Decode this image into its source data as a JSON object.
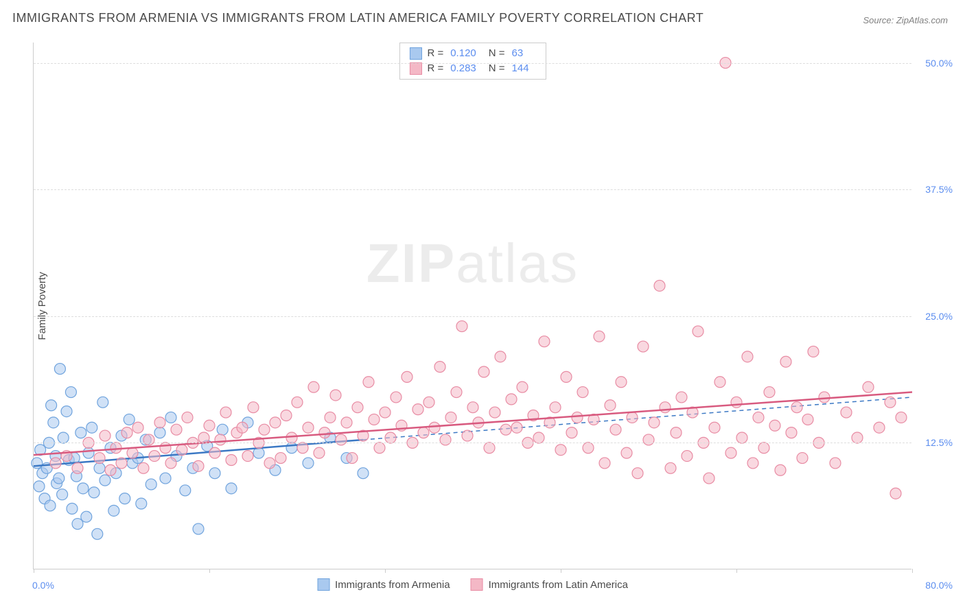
{
  "title": "IMMIGRANTS FROM ARMENIA VS IMMIGRANTS FROM LATIN AMERICA FAMILY POVERTY CORRELATION CHART",
  "source": "Source: ZipAtlas.com",
  "ylabel": "Family Poverty",
  "watermark_a": "ZIP",
  "watermark_b": "atlas",
  "chart": {
    "type": "scatter",
    "background_color": "#ffffff",
    "grid_color": "#dddddd",
    "axis_color": "#cccccc",
    "tick_label_color": "#5b8def",
    "xlim": [
      0,
      80
    ],
    "ylim": [
      0,
      52
    ],
    "xticks": [
      0,
      16,
      32,
      48,
      64,
      80
    ],
    "xtick_labels": {
      "0": "0.0%",
      "80": "80.0%"
    },
    "yticks": [
      12.5,
      25.0,
      37.5,
      50.0
    ],
    "ytick_labels": [
      "12.5%",
      "25.0%",
      "37.5%",
      "50.0%"
    ],
    "marker_radius": 8,
    "marker_opacity": 0.55,
    "line_width": 2.5,
    "series": [
      {
        "name": "Immigrants from Armenia",
        "color_fill": "#a9c9ef",
        "color_stroke": "#6fa3dd",
        "line_color": "#3b78c4",
        "r": "0.120",
        "n": "63",
        "trend": {
          "x1": 0,
          "y1": 10.2,
          "x2": 30,
          "y2": 12.8,
          "x_ext": 80,
          "y_ext": 17.0
        },
        "points": [
          [
            0.3,
            10.5
          ],
          [
            0.5,
            8.2
          ],
          [
            0.6,
            11.8
          ],
          [
            0.8,
            9.5
          ],
          [
            1.0,
            7.0
          ],
          [
            1.2,
            10.0
          ],
          [
            1.4,
            12.5
          ],
          [
            1.5,
            6.3
          ],
          [
            1.6,
            16.2
          ],
          [
            1.8,
            14.5
          ],
          [
            2.0,
            11.2
          ],
          [
            2.1,
            8.5
          ],
          [
            2.3,
            9.0
          ],
          [
            2.4,
            19.8
          ],
          [
            2.6,
            7.4
          ],
          [
            2.7,
            13.0
          ],
          [
            3.0,
            15.6
          ],
          [
            3.2,
            10.8
          ],
          [
            3.4,
            17.5
          ],
          [
            3.5,
            6.0
          ],
          [
            3.7,
            11.0
          ],
          [
            3.9,
            9.2
          ],
          [
            4.0,
            4.5
          ],
          [
            4.3,
            13.5
          ],
          [
            4.5,
            8.0
          ],
          [
            4.8,
            5.2
          ],
          [
            5.0,
            11.5
          ],
          [
            5.3,
            14.0
          ],
          [
            5.5,
            7.6
          ],
          [
            5.8,
            3.5
          ],
          [
            6.0,
            10.0
          ],
          [
            6.3,
            16.5
          ],
          [
            6.5,
            8.8
          ],
          [
            7.0,
            12.0
          ],
          [
            7.3,
            5.8
          ],
          [
            7.5,
            9.5
          ],
          [
            8.0,
            13.2
          ],
          [
            8.3,
            7.0
          ],
          [
            8.7,
            14.8
          ],
          [
            9.0,
            10.5
          ],
          [
            9.5,
            11.0
          ],
          [
            9.8,
            6.5
          ],
          [
            10.2,
            12.8
          ],
          [
            10.7,
            8.4
          ],
          [
            11.5,
            13.5
          ],
          [
            12.0,
            9.0
          ],
          [
            12.5,
            15.0
          ],
          [
            13.0,
            11.2
          ],
          [
            13.8,
            7.8
          ],
          [
            14.5,
            10.0
          ],
          [
            15.0,
            4.0
          ],
          [
            15.8,
            12.2
          ],
          [
            16.5,
            9.5
          ],
          [
            17.2,
            13.8
          ],
          [
            18.0,
            8.0
          ],
          [
            19.5,
            14.5
          ],
          [
            20.5,
            11.5
          ],
          [
            22.0,
            9.8
          ],
          [
            23.5,
            12.0
          ],
          [
            25.0,
            10.5
          ],
          [
            27.0,
            13.0
          ],
          [
            28.5,
            11.0
          ],
          [
            30.0,
            9.5
          ]
        ]
      },
      {
        "name": "Immigrants from Latin America",
        "color_fill": "#f4b8c6",
        "color_stroke": "#e88ba3",
        "line_color": "#d85a7f",
        "r": "0.283",
        "n": "144",
        "trend": {
          "x1": 0,
          "y1": 11.3,
          "x2": 80,
          "y2": 17.5,
          "x_ext": 80,
          "y_ext": 17.5
        },
        "points": [
          [
            2,
            10.5
          ],
          [
            3,
            11.2
          ],
          [
            4,
            10.0
          ],
          [
            5,
            12.5
          ],
          [
            6,
            11.0
          ],
          [
            6.5,
            13.2
          ],
          [
            7,
            9.8
          ],
          [
            7.5,
            12.0
          ],
          [
            8,
            10.5
          ],
          [
            8.5,
            13.5
          ],
          [
            9,
            11.5
          ],
          [
            9.5,
            14.0
          ],
          [
            10,
            10.0
          ],
          [
            10.5,
            12.8
          ],
          [
            11,
            11.2
          ],
          [
            11.5,
            14.5
          ],
          [
            12,
            12.0
          ],
          [
            12.5,
            10.5
          ],
          [
            13,
            13.8
          ],
          [
            13.5,
            11.8
          ],
          [
            14,
            15.0
          ],
          [
            14.5,
            12.5
          ],
          [
            15,
            10.2
          ],
          [
            15.5,
            13.0
          ],
          [
            16,
            14.2
          ],
          [
            16.5,
            11.5
          ],
          [
            17,
            12.8
          ],
          [
            17.5,
            15.5
          ],
          [
            18,
            10.8
          ],
          [
            18.5,
            13.5
          ],
          [
            19,
            14.0
          ],
          [
            19.5,
            11.2
          ],
          [
            20,
            16.0
          ],
          [
            20.5,
            12.5
          ],
          [
            21,
            13.8
          ],
          [
            21.5,
            10.5
          ],
          [
            22,
            14.5
          ],
          [
            22.5,
            11.0
          ],
          [
            23,
            15.2
          ],
          [
            23.5,
            13.0
          ],
          [
            24,
            16.5
          ],
          [
            24.5,
            12.0
          ],
          [
            25,
            14.0
          ],
          [
            25.5,
            18.0
          ],
          [
            26,
            11.5
          ],
          [
            26.5,
            13.5
          ],
          [
            27,
            15.0
          ],
          [
            27.5,
            17.2
          ],
          [
            28,
            12.8
          ],
          [
            28.5,
            14.5
          ],
          [
            29,
            11.0
          ],
          [
            29.5,
            16.0
          ],
          [
            30,
            13.2
          ],
          [
            30.5,
            18.5
          ],
          [
            31,
            14.8
          ],
          [
            31.5,
            12.0
          ],
          [
            32,
            15.5
          ],
          [
            32.5,
            13.0
          ],
          [
            33,
            17.0
          ],
          [
            33.5,
            14.2
          ],
          [
            34,
            19.0
          ],
          [
            34.5,
            12.5
          ],
          [
            35,
            15.8
          ],
          [
            35.5,
            13.5
          ],
          [
            36,
            16.5
          ],
          [
            36.5,
            14.0
          ],
          [
            37,
            20.0
          ],
          [
            37.5,
            12.8
          ],
          [
            38,
            15.0
          ],
          [
            38.5,
            17.5
          ],
          [
            39,
            24.0
          ],
          [
            39.5,
            13.2
          ],
          [
            40,
            16.0
          ],
          [
            40.5,
            14.5
          ],
          [
            41,
            19.5
          ],
          [
            41.5,
            12.0
          ],
          [
            42,
            15.5
          ],
          [
            42.5,
            21.0
          ],
          [
            43,
            13.8
          ],
          [
            43.5,
            16.8
          ],
          [
            44,
            14.0
          ],
          [
            44.5,
            18.0
          ],
          [
            45,
            12.5
          ],
          [
            45.5,
            15.2
          ],
          [
            46,
            13.0
          ],
          [
            46.5,
            22.5
          ],
          [
            47,
            14.5
          ],
          [
            47.5,
            16.0
          ],
          [
            48,
            11.8
          ],
          [
            48.5,
            19.0
          ],
          [
            49,
            13.5
          ],
          [
            49.5,
            15.0
          ],
          [
            50,
            17.5
          ],
          [
            50.5,
            12.0
          ],
          [
            51,
            14.8
          ],
          [
            51.5,
            23.0
          ],
          [
            52,
            10.5
          ],
          [
            52.5,
            16.2
          ],
          [
            53,
            13.8
          ],
          [
            53.5,
            18.5
          ],
          [
            54,
            11.5
          ],
          [
            54.5,
            15.0
          ],
          [
            55,
            9.5
          ],
          [
            55.5,
            22.0
          ],
          [
            56,
            12.8
          ],
          [
            56.5,
            14.5
          ],
          [
            57,
            28.0
          ],
          [
            57.5,
            16.0
          ],
          [
            58,
            10.0
          ],
          [
            58.5,
            13.5
          ],
          [
            59,
            17.0
          ],
          [
            59.5,
            11.2
          ],
          [
            60,
            15.5
          ],
          [
            60.5,
            23.5
          ],
          [
            61,
            12.5
          ],
          [
            61.5,
            9.0
          ],
          [
            62,
            14.0
          ],
          [
            62.5,
            18.5
          ],
          [
            63,
            50.0
          ],
          [
            63.5,
            11.5
          ],
          [
            64,
            16.5
          ],
          [
            64.5,
            13.0
          ],
          [
            65,
            21.0
          ],
          [
            65.5,
            10.5
          ],
          [
            66,
            15.0
          ],
          [
            66.5,
            12.0
          ],
          [
            67,
            17.5
          ],
          [
            67.5,
            14.2
          ],
          [
            68,
            9.8
          ],
          [
            68.5,
            20.5
          ],
          [
            69,
            13.5
          ],
          [
            69.5,
            16.0
          ],
          [
            70,
            11.0
          ],
          [
            70.5,
            14.8
          ],
          [
            71,
            21.5
          ],
          [
            71.5,
            12.5
          ],
          [
            72,
            17.0
          ],
          [
            73,
            10.5
          ],
          [
            74,
            15.5
          ],
          [
            75,
            13.0
          ],
          [
            76,
            18.0
          ],
          [
            77,
            14.0
          ],
          [
            78,
            16.5
          ],
          [
            78.5,
            7.5
          ],
          [
            79,
            15.0
          ]
        ]
      }
    ]
  },
  "legend_stats_labels": {
    "r": "R  =",
    "n": "N  ="
  }
}
